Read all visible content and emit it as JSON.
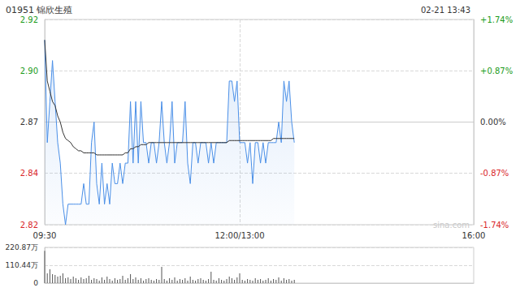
{
  "chart_data": [
    {
      "type": "line",
      "title": "01951 锦欣生殖",
      "subtitle": "02-21 13:43",
      "annotations": [
        "sina.com"
      ],
      "x": [
        0,
        2,
        4,
        6,
        8,
        10,
        12,
        14,
        16,
        18,
        20,
        22,
        24,
        26,
        28,
        30,
        32,
        34,
        36,
        38,
        40,
        42,
        44,
        46,
        48,
        50,
        52,
        54,
        56,
        58,
        60,
        62,
        64,
        66,
        68,
        70,
        72,
        74,
        76,
        78,
        80,
        82,
        84,
        86,
        88,
        90,
        92,
        94,
        96,
        98,
        100,
        102,
        104,
        106,
        108,
        110,
        112,
        114,
        116,
        118,
        120,
        122,
        124,
        126,
        128,
        130,
        132,
        134,
        136,
        138,
        140,
        142,
        144,
        146,
        148,
        150,
        152,
        154,
        156,
        158,
        160,
        162,
        164,
        166,
        168,
        170,
        172,
        174,
        176,
        178,
        180,
        182,
        184,
        186,
        188,
        190,
        192
      ],
      "series": [
        {
          "color": "#4a8fe7",
          "values": [
            2.91,
            2.86,
            2.88,
            2.9,
            2.88,
            2.86,
            2.85,
            2.83,
            2.82,
            2.83,
            2.83,
            2.83,
            2.83,
            2.83,
            2.83,
            2.84,
            2.83,
            2.83,
            2.86,
            2.87,
            2.84,
            2.83,
            2.85,
            2.83,
            2.84,
            2.83,
            2.85,
            2.84,
            2.84,
            2.85,
            2.84,
            2.85,
            2.85,
            2.88,
            2.85,
            2.88,
            2.85,
            2.88,
            2.86,
            2.86,
            2.85,
            2.86,
            2.86,
            2.85,
            2.86,
            2.88,
            2.86,
            2.85,
            2.86,
            2.88,
            2.85,
            2.86,
            2.86,
            2.86,
            2.88,
            2.85,
            2.84,
            2.86,
            2.86,
            2.85,
            2.86,
            2.86,
            2.86,
            2.85,
            2.86,
            2.85,
            2.86,
            2.86,
            2.86,
            2.86,
            2.86,
            2.89,
            2.89,
            2.88,
            2.89,
            2.86,
            2.86,
            2.86,
            2.85,
            2.86,
            2.84,
            2.86,
            2.86,
            2.85,
            2.86,
            2.85,
            2.86,
            2.86,
            2.86,
            2.86,
            2.87,
            2.86,
            2.89,
            2.88,
            2.89,
            2.87,
            2.86
          ]
        },
        {
          "color": "#333333",
          "values": [
            2.91,
            2.89,
            2.885,
            2.88,
            2.878,
            2.873,
            2.87,
            2.865,
            2.862,
            2.861,
            2.86,
            2.858,
            2.857,
            2.856,
            2.856,
            2.855,
            2.855,
            2.855,
            2.855,
            2.855,
            2.854,
            2.854,
            2.854,
            2.854,
            2.854,
            2.854,
            2.854,
            2.854,
            2.854,
            2.854,
            2.854,
            2.855,
            2.855,
            2.857,
            2.857,
            2.858,
            2.858,
            2.859,
            2.859,
            2.859,
            2.86,
            2.86,
            2.86,
            2.86,
            2.86,
            2.86,
            2.86,
            2.86,
            2.86,
            2.86,
            2.86,
            2.86,
            2.86,
            2.86,
            2.86,
            2.86,
            2.86,
            2.86,
            2.86,
            2.86,
            2.86,
            2.86,
            2.86,
            2.86,
            2.86,
            2.86,
            2.86,
            2.86,
            2.86,
            2.86,
            2.86,
            2.861,
            2.861,
            2.861,
            2.861,
            2.861,
            2.861,
            2.861,
            2.861,
            2.861,
            2.861,
            2.861,
            2.861,
            2.861,
            2.861,
            2.861,
            2.861,
            2.861,
            2.862,
            2.862,
            2.862,
            2.862,
            2.862,
            2.862,
            2.862,
            2.862,
            2.862
          ]
        }
      ],
      "xlim": [
        0,
        330
      ],
      "xticks": [
        {
          "value": 0,
          "label": "09:30"
        },
        {
          "value": 150,
          "label": "12:00/13:00"
        },
        {
          "value": 330,
          "label": "16:00"
        }
      ],
      "ylim": [
        2.82,
        2.92
      ],
      "yticks": [
        2.82,
        {
          "value": 2.845,
          "label": "2.84"
        },
        2.87,
        {
          "value": 2.895,
          "label": "2.90"
        },
        2.92
      ],
      "y2lim": [
        -1.74,
        1.74
      ],
      "y2ticks": [
        {
          "value": -1.74,
          "label": "-1.74%"
        },
        {
          "value": -0.87,
          "label": "-0.87%"
        },
        {
          "value": 0,
          "label": "0.00%"
        },
        {
          "value": 0.87,
          "label": "+0.87%"
        },
        {
          "value": 1.74,
          "label": "+1.74%"
        }
      ],
      "grid": true
    },
    {
      "type": "bar",
      "color": "#555555",
      "x": [
        0,
        2,
        4,
        6,
        8,
        10,
        12,
        14,
        16,
        18,
        20,
        22,
        24,
        26,
        28,
        30,
        32,
        34,
        36,
        38,
        40,
        42,
        44,
        46,
        48,
        50,
        52,
        54,
        56,
        58,
        60,
        62,
        64,
        66,
        68,
        70,
        72,
        74,
        76,
        78,
        80,
        82,
        84,
        86,
        88,
        90,
        92,
        94,
        96,
        98,
        100,
        102,
        104,
        106,
        108,
        110,
        112,
        114,
        116,
        118,
        120,
        122,
        124,
        126,
        128,
        130,
        132,
        134,
        136,
        138,
        140,
        142,
        144,
        146,
        148,
        150,
        152,
        154,
        156,
        158,
        160,
        162,
        164,
        166,
        168,
        170,
        172,
        174,
        176,
        178,
        180,
        182,
        184,
        186,
        188,
        190,
        192
      ],
      "values": [
        200,
        60,
        85,
        55,
        50,
        40,
        45,
        60,
        30,
        35,
        25,
        40,
        30,
        20,
        35,
        25,
        30,
        45,
        20,
        30,
        25,
        15,
        35,
        20,
        40,
        25,
        15,
        30,
        20,
        25,
        45,
        20,
        30,
        55,
        25,
        35,
        20,
        30,
        15,
        25,
        30,
        20,
        15,
        25,
        20,
        100,
        25,
        15,
        30,
        20,
        35,
        15,
        25,
        20,
        30,
        15,
        40,
        20,
        15,
        25,
        30,
        20,
        15,
        25,
        70,
        20,
        15,
        30,
        20,
        15,
        25,
        40,
        30,
        20,
        35,
        60,
        20,
        15,
        25,
        20,
        15,
        30,
        20,
        25,
        15,
        20,
        30,
        15,
        25,
        20,
        35,
        15,
        30,
        20,
        25,
        15,
        20
      ],
      "xlim": [
        0,
        330
      ],
      "ylim": [
        0,
        220.87
      ],
      "yticks": [
        0,
        {
          "value": 110.44,
          "label": "110.44万"
        },
        {
          "value": 220.87,
          "label": "220.87万"
        }
      ],
      "tick_labels": "y",
      "grid": true
    }
  ]
}
